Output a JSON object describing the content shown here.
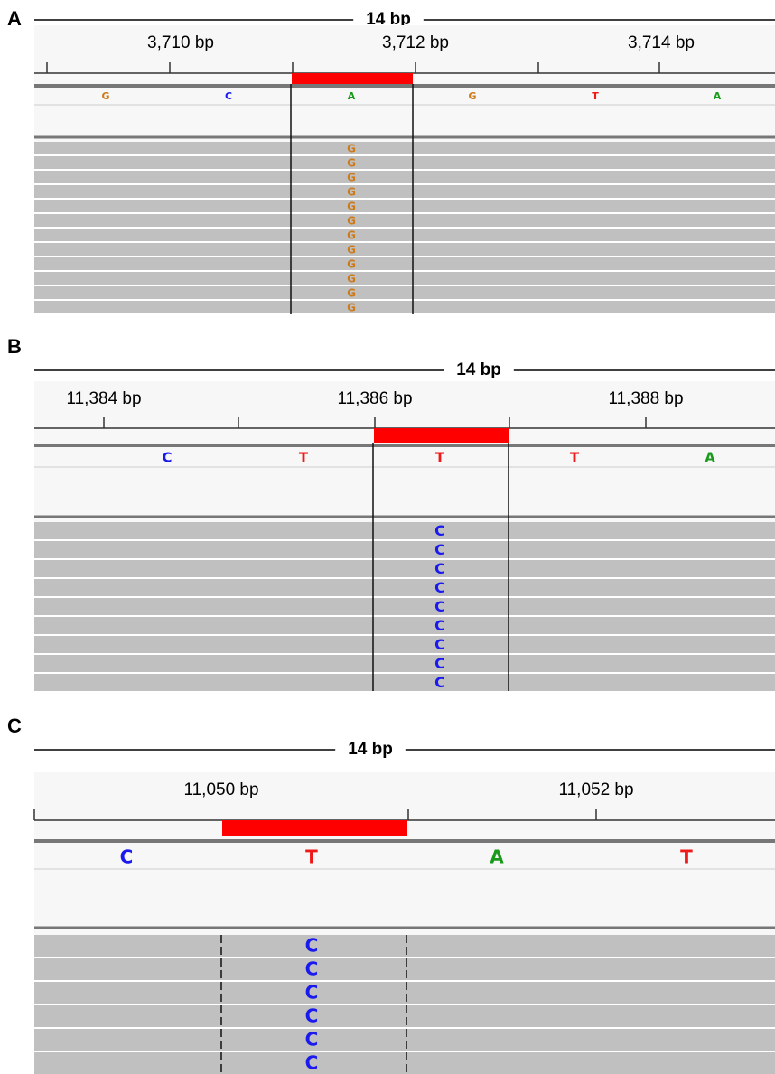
{
  "panels": [
    {
      "label": "A",
      "span": "14 bp",
      "ruler_labels": [
        "3,710 bp",
        "3,712 bp",
        "3,714 bp"
      ],
      "reference": [
        "G",
        "C",
        "A",
        "G",
        "T",
        "A"
      ],
      "reads": [
        "G",
        "G",
        "G",
        "G",
        "G",
        "G",
        "G",
        "G",
        "G",
        "G",
        "G",
        "G"
      ]
    },
    {
      "label": "B",
      "span": "14 bp",
      "ruler_labels": [
        "11,384 bp",
        "11,386 bp",
        "11,388 bp"
      ],
      "reference": [
        "C",
        "T",
        "T",
        "T",
        "A"
      ],
      "reads": [
        "C",
        "C",
        "C",
        "C",
        "C",
        "C",
        "C",
        "C",
        "C"
      ]
    },
    {
      "label": "C",
      "span": "14 bp",
      "ruler_labels": [
        "11,050 bp",
        "11,052 bp"
      ],
      "reference": [
        "C",
        "T",
        "A",
        "T"
      ],
      "reads": [
        "C",
        "C",
        "C",
        "C",
        "C",
        "C"
      ]
    }
  ]
}
